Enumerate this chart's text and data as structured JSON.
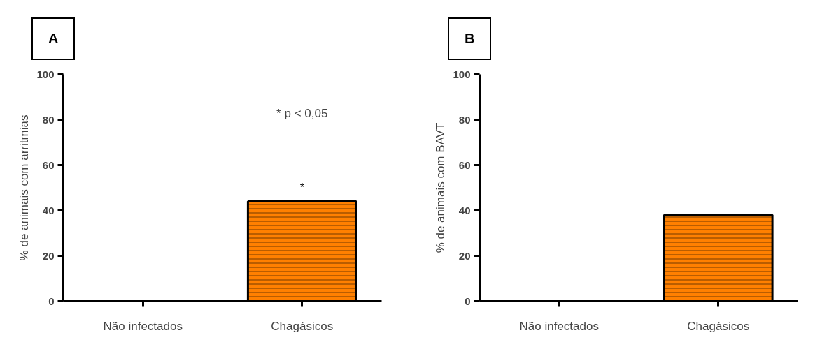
{
  "chart_data": [
    {
      "type": "bar",
      "title": "A",
      "ylabel": "% de animais com arritmias",
      "categories": [
        "Não infectados",
        "Chagásicos"
      ],
      "values": [
        0,
        44
      ],
      "color": "#ff8000",
      "ylim": [
        0,
        100
      ],
      "yticks": [
        0,
        20,
        40,
        60,
        80,
        100
      ],
      "grid": false,
      "annotations": [
        "* p < 0,05",
        {
          "text": "*",
          "x": "Chagásicos",
          "y": 44
        }
      ]
    },
    {
      "type": "bar",
      "title": "B",
      "ylabel": "% de animais com BAVT",
      "categories": [
        "Não infectados",
        "Chagásicos"
      ],
      "values": [
        0,
        38
      ],
      "color": "#ff8000",
      "ylim": [
        0,
        100
      ],
      "yticks": [
        0,
        20,
        40,
        60,
        80,
        100
      ],
      "grid": false
    }
  ]
}
